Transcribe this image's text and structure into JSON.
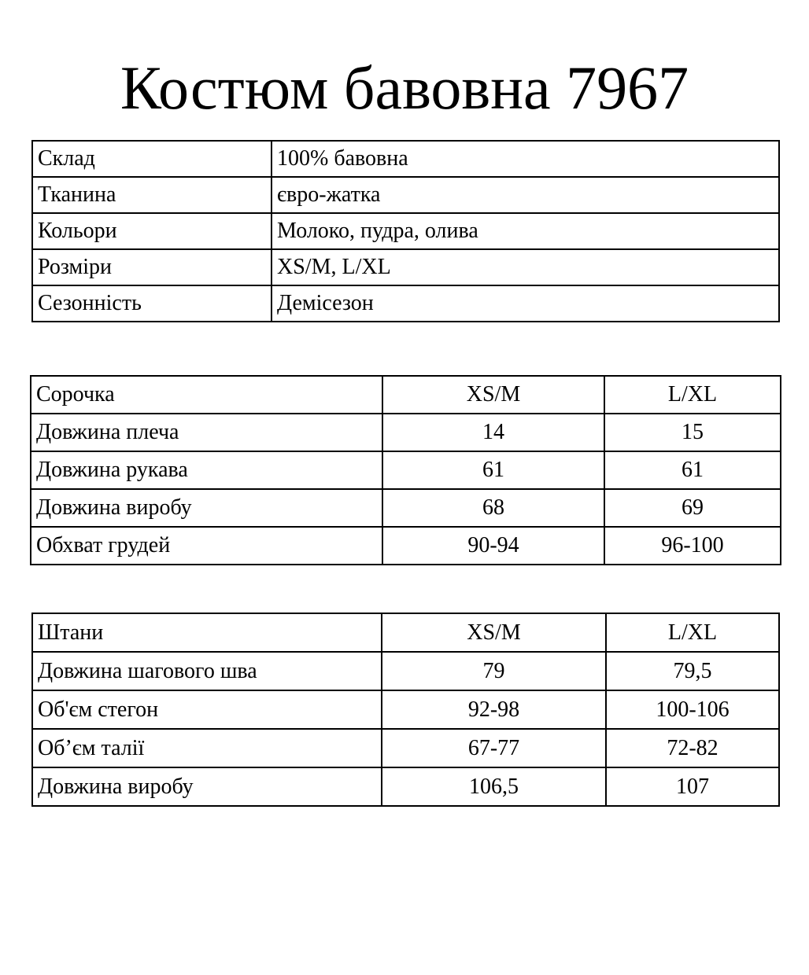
{
  "title": "Костюм бавовна 7967",
  "info": [
    {
      "label": "Склад",
      "value": "100% бавовна"
    },
    {
      "label": "Тканина",
      "value": "євро-жатка"
    },
    {
      "label": "Кольори",
      "value": "Молоко, пудра, олива"
    },
    {
      "label": "Розміри",
      "value": "XS/M, L/XL"
    },
    {
      "label": "Сезонність",
      "value": "Демісезон"
    }
  ],
  "shirt": {
    "header": [
      "Сорочка",
      "XS/M",
      "L/XL"
    ],
    "rows": [
      [
        "Довжина плеча",
        "14",
        "15"
      ],
      [
        "Довжина рукава",
        "61",
        "61"
      ],
      [
        "Довжина виробу",
        "68",
        "69"
      ],
      [
        "Обхват грудей",
        "90-94",
        "96-100"
      ]
    ]
  },
  "pants": {
    "header": [
      "Штани",
      "XS/M",
      "L/XL"
    ],
    "rows": [
      [
        "Довжина шагового шва",
        "79",
        "79,5"
      ],
      [
        "Об'єм стегон",
        "92-98",
        "100-106"
      ],
      [
        "Об’єм талії",
        "67-77",
        "72-82"
      ],
      [
        "Довжина виробу",
        "106,5",
        "107"
      ]
    ]
  }
}
